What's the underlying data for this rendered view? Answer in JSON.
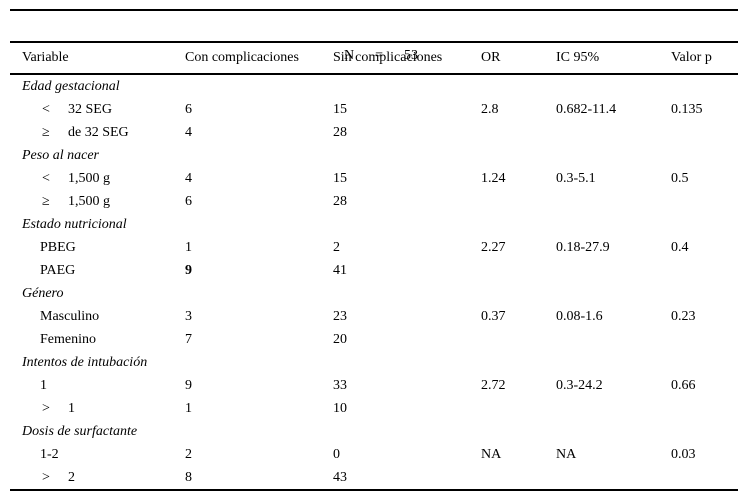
{
  "table": {
    "n_row": "N      =      53",
    "columns": [
      "Variable",
      "Con complicaciones",
      "Sin complicaciones",
      "OR",
      "IC 95%",
      "Valor p"
    ],
    "rows": [
      {
        "type": "section",
        "label": "Edad gestacional"
      },
      {
        "type": "data",
        "symbol": "<",
        "label": "32 SEG",
        "con": "6",
        "sin": "15",
        "or": "2.8",
        "ic": "0.682-11.4",
        "p": "0.135"
      },
      {
        "type": "data",
        "symbol": "≥",
        "label": "de 32 SEG",
        "con": "4",
        "sin": "28",
        "or": "",
        "ic": "",
        "p": ""
      },
      {
        "type": "section",
        "label": "Peso al nacer"
      },
      {
        "type": "data",
        "symbol": "<",
        "label": "1,500 g",
        "con": "4",
        "sin": "15",
        "or": "1.24",
        "ic": "0.3-5.1",
        "p": "0.5"
      },
      {
        "type": "data",
        "symbol": "≥",
        "label": "1,500 g",
        "con": "6",
        "sin": "28",
        "or": "",
        "ic": "",
        "p": ""
      },
      {
        "type": "section",
        "label": "Estado nutricional"
      },
      {
        "type": "data",
        "label": "PBEG",
        "con": "1",
        "sin": "2",
        "or": "2.27",
        "ic": "0.18-27.9",
        "p": "0.4"
      },
      {
        "type": "data",
        "label": "PAEG",
        "con": "9",
        "con_bold": true,
        "sin": "41",
        "or": "",
        "ic": "",
        "p": ""
      },
      {
        "type": "section",
        "label": "Género"
      },
      {
        "type": "data",
        "label": "Masculino",
        "con": "3",
        "sin": "23",
        "or": "0.37",
        "ic": "0.08-1.6",
        "p": "0.23"
      },
      {
        "type": "data",
        "label": "Femenino",
        "con": "7",
        "sin": "20",
        "or": "",
        "ic": "",
        "p": ""
      },
      {
        "type": "section",
        "label": "Intentos de intubación"
      },
      {
        "type": "data",
        "label": "1",
        "con": "9",
        "sin": "33",
        "or": "2.72",
        "ic": "0.3-24.2",
        "p": "0.66"
      },
      {
        "type": "data",
        "symbol": ">",
        "label": "1",
        "con": "1",
        "sin": "10",
        "or": "",
        "ic": "",
        "p": ""
      },
      {
        "type": "section",
        "label": "Dosis de surfactante"
      },
      {
        "type": "data",
        "label": "1-2",
        "con": "2",
        "sin": "0",
        "or": "NA",
        "ic": "NA",
        "p": "0.03"
      },
      {
        "type": "data",
        "symbol": ">",
        "label": "2",
        "con": "8",
        "sin": "43",
        "or": "",
        "ic": "",
        "p": ""
      }
    ]
  }
}
